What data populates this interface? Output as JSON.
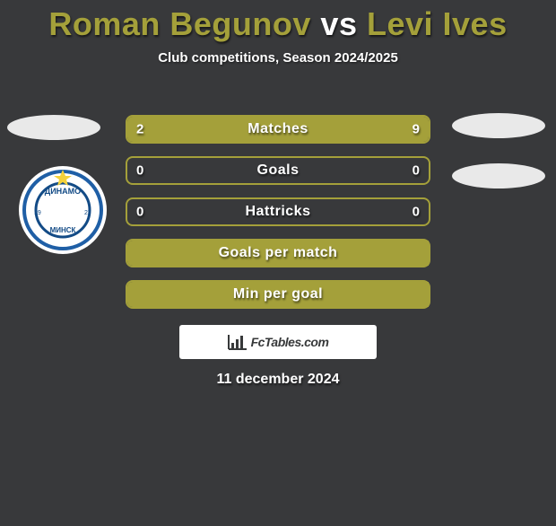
{
  "background_color": "#38393b",
  "title": {
    "player1": "Roman Begunov",
    "vs": "vs",
    "player2": "Levi Ives",
    "hl_color": "#a4a03a",
    "vs_color": "#ffffff",
    "fontsize": 36
  },
  "subtitle": "Club competitions, Season 2024/2025",
  "avatars": {
    "placeholder_bg": "#e9e9e9"
  },
  "club_badge": {
    "outer_bg": "#ffffff",
    "ring_color1": "#1f5fa6",
    "ring_color2": "#134b86",
    "star_color": "#f4d23c",
    "wave_color": "#4b8fd0",
    "letters": "ДИНАМО",
    "city": "МИНСК",
    "year": "1927"
  },
  "rows": {
    "border_color": "#a4a03a",
    "fill_color": "#a4a03a",
    "text_color": "#ffffff",
    "label_fontsize": 16,
    "height": 32,
    "items": [
      {
        "label": "Matches",
        "left": "2",
        "right": "9",
        "left_fill_pct": 18,
        "right_fill_pct": 82,
        "show_values": true
      },
      {
        "label": "Goals",
        "left": "0",
        "right": "0",
        "left_fill_pct": 0,
        "right_fill_pct": 0,
        "show_values": true
      },
      {
        "label": "Hattricks",
        "left": "0",
        "right": "0",
        "left_fill_pct": 0,
        "right_fill_pct": 0,
        "show_values": true
      },
      {
        "label": "Goals per match",
        "left": "",
        "right": "",
        "left_fill_pct": 100,
        "right_fill_pct": 0,
        "show_values": false
      },
      {
        "label": "Min per goal",
        "left": "",
        "right": "",
        "left_fill_pct": 100,
        "right_fill_pct": 0,
        "show_values": false
      }
    ]
  },
  "footer": {
    "text": "FcTables.com",
    "icon_color": "#37393a",
    "bg": "#ffffff"
  },
  "date": "11 december 2024"
}
